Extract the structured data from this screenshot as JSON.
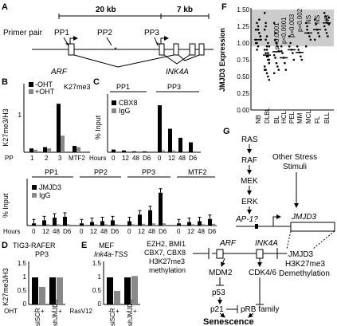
{
  "panels": {
    "A": {
      "letter": "A",
      "primer_label": "Primer pair",
      "scale_1": "20 kb",
      "scale_2": "7 kb",
      "primers": [
        "PP1",
        "PP2",
        "PP3"
      ],
      "gene_1": "ARF",
      "gene_2": "INK4A"
    },
    "B": {
      "letter": "B",
      "ylabel": "K27me3/H3",
      "title": "K27me3",
      "legend": [
        "-OHT",
        "+OHT"
      ],
      "xlabel_prefix": "PP",
      "ticks": [
        "1",
        "2",
        "3",
        "MTF2"
      ],
      "yticks": [
        "1"
      ]
    },
    "C": {
      "letter": "C",
      "ylabel": "% Input",
      "top_titles": [
        "PP1",
        "PP3"
      ],
      "top_legend": [
        "CBX8",
        "IgG"
      ],
      "xlabel": "Hours",
      "time_ticks": [
        "0",
        "12",
        "48",
        "D6"
      ],
      "bottom_titles": [
        "PP1",
        "PP2",
        "PP3",
        "MTF2"
      ],
      "bottom_legend": [
        "JMJD3",
        "IgG"
      ],
      "bottom_ylabel": "% Input"
    },
    "D": {
      "letter": "D",
      "title_1": "TIG3-RAFER",
      "title_2": "PP3",
      "ylabel": "K27me3/H3",
      "yticks": [
        "1.5",
        "1",
        "0.5",
        "0"
      ],
      "treatment": "OHT",
      "signs": [
        "-",
        "+",
        "-",
        "+"
      ],
      "groups": [
        "siSCR",
        "shJMJD3"
      ]
    },
    "E": {
      "letter": "E",
      "title_1": "MEF",
      "title_2": "Ink4a-TSS",
      "yticks": [
        "1.5",
        "1",
        "0.5",
        "0"
      ],
      "treatment": "RasV12",
      "signs": [
        "-",
        "+",
        "-",
        "+"
      ],
      "groups": [
        "siSCR",
        "shJMJD3"
      ]
    },
    "F": {
      "letter": "F",
      "ylabel": "JMJD3 Expression",
      "yticks": [
        "1.50",
        "1.25",
        "1.00",
        "0.75",
        "0.50",
        "0.25",
        "0.00"
      ],
      "categories": [
        "NB",
        "DLBL",
        "BL",
        "HCL",
        "PEL",
        "MM",
        "MCL",
        "FL",
        "BLL"
      ],
      "pvalues": [
        "p<0.0001",
        "p<0.0001",
        "p=0.003",
        "p=0.002",
        "NS",
        "NS",
        "NS"
      ]
    },
    "G": {
      "letter": "G",
      "chain": [
        "RAS",
        "RAF",
        "MEK",
        "ERK"
      ],
      "other_stimuli": [
        "Other Stress",
        "Stimuli"
      ],
      "ap1": "AP-1?",
      "jmjd3_gene": "JMJD3",
      "polycomb": [
        "EZH2, BMI1",
        "CBX7, CBX8",
        "H3K27me3",
        "methylation"
      ],
      "arf": "ARF",
      "ink4a": "INK4A",
      "jmjd3_right": [
        "JMJD3",
        "H3K27me3",
        "Demethylation"
      ],
      "mdm2": "MDM2",
      "cdk": "CDK4/6",
      "p53": "p53",
      "p21": "p21",
      "prb": "pRB family",
      "senescence": "Senescence"
    }
  },
  "chart_data": [
    {
      "type": "bar",
      "panel": "B",
      "title": "K27me3",
      "ylabel": "K27me3/H3",
      "categories": [
        "1",
        "2",
        "3",
        "MTF2"
      ],
      "series": [
        {
          "name": "-OHT",
          "values": [
            0.15,
            0.2,
            1.9,
            0.25
          ]
        },
        {
          "name": "+OHT",
          "values": [
            0.1,
            0.15,
            0.65,
            0.2
          ]
        }
      ],
      "ylim": [
        0,
        2.5
      ],
      "color_minus": "#000000",
      "color_plus": "#888888"
    },
    {
      "type": "bar",
      "panel": "C-top",
      "ylabel": "% Input",
      "xlabel": "Hours",
      "groups": [
        "PP1",
        "PP3"
      ],
      "categories": [
        "0",
        "12",
        "48",
        "D6"
      ],
      "series": [
        {
          "name": "CBX8",
          "values": [
            [
              0.15,
              0.1,
              0.05,
              0.05
            ],
            [
              2.6,
              1.3,
              0.8,
              0.55
            ]
          ]
        },
        {
          "name": "IgG",
          "values": [
            [
              0.05,
              0.05,
              0.05,
              0.05
            ],
            [
              0.1,
              0.1,
              0.05,
              0.05
            ]
          ]
        }
      ],
      "ylim": [
        0,
        3
      ]
    },
    {
      "type": "bar",
      "panel": "C-bottom",
      "ylabel": "% Input",
      "xlabel": "Hours",
      "groups": [
        "PP1",
        "PP2",
        "PP3",
        "MTF2"
      ],
      "categories": [
        "0",
        "12",
        "48",
        "D6"
      ],
      "series": [
        {
          "name": "JMJD3",
          "values": [
            [
              0.05,
              0.12,
              0.18,
              0.2
            ],
            [
              0.05,
              0.08,
              0.1,
              0.12
            ],
            [
              0.1,
              0.25,
              0.35,
              0.75
            ],
            [
              0.05,
              0.08,
              0.1,
              0.15
            ]
          ]
        },
        {
          "name": "IgG",
          "values": [
            [
              0.02,
              0.03,
              0.03,
              0.03
            ],
            [
              0.02,
              0.03,
              0.03,
              0.03
            ],
            [
              0.03,
              0.04,
              0.05,
              0.05
            ],
            [
              0.02,
              0.03,
              0.03,
              0.04
            ]
          ]
        }
      ],
      "ylim": [
        0,
        1
      ]
    },
    {
      "type": "bar",
      "panel": "D",
      "ylabel": "K27me3/H3",
      "categories": [
        "siSCR -",
        "siSCR +",
        "shJMJD3 -",
        "shJMJD3 +"
      ],
      "values": [
        1.0,
        0.65,
        1.0,
        1.0
      ],
      "colors": [
        "#000000",
        "#888888",
        "#000000",
        "#888888"
      ],
      "ylim": [
        0,
        1.5
      ]
    },
    {
      "type": "bar",
      "panel": "E",
      "categories": [
        "siSCR -",
        "siSCR +",
        "shJMJD3 -",
        "shJMJD3 +"
      ],
      "values": [
        1.0,
        0.5,
        1.0,
        1.05
      ],
      "colors": [
        "#000000",
        "#888888",
        "#000000",
        "#888888"
      ],
      "ylim": [
        0,
        1.5
      ]
    },
    {
      "type": "scatter",
      "panel": "F",
      "ylabel": "JMJD3 Expression",
      "categories": [
        "NB",
        "DLBL",
        "BL",
        "HCL",
        "PEL",
        "MM",
        "MCL",
        "FL",
        "BLL"
      ],
      "medians": [
        1.05,
        0.82,
        0.87,
        0.78,
        0.9,
        0.86,
        1.15,
        1.2,
        1.3
      ],
      "ylim": [
        0,
        1.5
      ],
      "band": [
        0.95,
        1.5
      ],
      "points": [
        [
          1.2,
          1.3,
          1.25,
          1.15,
          1.1,
          1.05,
          1.0,
          0.95,
          1.35,
          1.1,
          1.0,
          0.9,
          1.2,
          1.15,
          1.05
        ],
        [
          1.45,
          1.3,
          1.1,
          1.0,
          0.95,
          0.9,
          0.85,
          0.8,
          0.75,
          0.7,
          0.65,
          0.6,
          0.55,
          0.5,
          0.45,
          1.2,
          1.05,
          0.9,
          0.8,
          0.7,
          0.6,
          1.25,
          0.95,
          0.85,
          0.75
        ],
        [
          1.3,
          1.15,
          1.0,
          0.95,
          0.88,
          0.82,
          0.78,
          0.7,
          0.65,
          0.6,
          0.55,
          1.05
        ],
        [
          0.95,
          0.85,
          0.78,
          0.7,
          0.6,
          0.88
        ],
        [
          1.1,
          1.0,
          0.9,
          0.85,
          0.75,
          0.95
        ],
        [
          0.95,
          0.9,
          0.86,
          0.8,
          0.75
        ],
        [
          1.3,
          1.2,
          1.15,
          1.1,
          1.05,
          0.95,
          1.25
        ],
        [
          1.35,
          1.28,
          1.2,
          1.15,
          1.1,
          1.05
        ],
        [
          1.45,
          1.4,
          1.35,
          1.3,
          1.28,
          1.25,
          1.2,
          1.15,
          1.1,
          1.38
        ]
      ]
    }
  ],
  "colors": {
    "black": "#000000",
    "gray": "#888888",
    "band": "#cccccc"
  }
}
